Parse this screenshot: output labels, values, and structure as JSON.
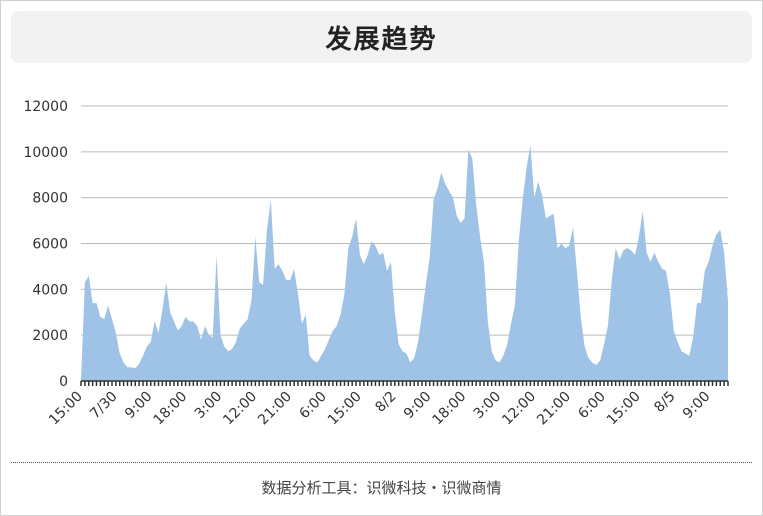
{
  "title": "发展趋势",
  "footer": "数据分析工具：识微科技・识微商情",
  "colors": {
    "area": "#9fc3e6",
    "axis": "#333333",
    "grid": "#bbbbbb"
  },
  "chart_data": {
    "type": "area",
    "ylim": [
      0,
      12000
    ],
    "yticks": [
      0,
      2000,
      4000,
      6000,
      8000,
      10000,
      12000
    ],
    "grid": true,
    "xtick_labels": [
      "15:00",
      "7/30",
      "9:00",
      "18:00",
      "3:00",
      "12:00",
      "21:00",
      "6:00",
      "15:00",
      "8/2",
      "9:00",
      "18:00",
      "3:00",
      "12:00",
      "21:00",
      "6:00",
      "15:00",
      "8/5",
      "9:00"
    ],
    "xtick_positions": [
      0,
      9,
      18,
      27,
      36,
      45,
      54,
      63,
      72,
      81,
      90,
      99,
      108,
      117,
      126,
      135,
      144,
      153,
      162
    ],
    "values": [
      0,
      4300,
      4600,
      3400,
      3400,
      2800,
      2700,
      3300,
      2700,
      2100,
      1200,
      800,
      600,
      600,
      550,
      750,
      1100,
      1500,
      1700,
      2600,
      2100,
      3100,
      4300,
      3000,
      2600,
      2200,
      2400,
      2800,
      2600,
      2600,
      2400,
      1800,
      2400,
      2000,
      1900,
      5500,
      2000,
      1500,
      1300,
      1400,
      1700,
      2300,
      2500,
      2700,
      3500,
      6300,
      4300,
      4200,
      6600,
      7900,
      4900,
      5100,
      4800,
      4400,
      4400,
      4900,
      3800,
      2500,
      2900,
      1100,
      900,
      800,
      1100,
      1400,
      1800,
      2200,
      2400,
      2900,
      3800,
      5800,
      6300,
      7100,
      5500,
      5100,
      5500,
      6100,
      5900,
      5500,
      5600,
      4800,
      5200,
      3000,
      1600,
      1300,
      1200,
      800,
      1000,
      1700,
      2900,
      4200,
      5400,
      7900,
      8400,
      9100,
      8600,
      8300,
      8000,
      7200,
      6900,
      7100,
      10100,
      9700,
      7700,
      6300,
      5200,
      2600,
      1300,
      900,
      800,
      1100,
      1600,
      2500,
      3300,
      6100,
      7900,
      9300,
      10300,
      8000,
      8700,
      8100,
      7100,
      7200,
      7300,
      5800,
      6000,
      5800,
      5900,
      6700,
      4800,
      2800,
      1500,
      1000,
      800,
      700,
      900,
      1600,
      2400,
      4400,
      5800,
      5300,
      5700,
      5800,
      5700,
      5500,
      6300,
      7400,
      5600,
      5200,
      5600,
      5200,
      4900,
      4800,
      3800,
      2200,
      1700,
      1300,
      1200,
      1100,
      1900,
      3400,
      3400,
      4800,
      5200,
      5900,
      6400,
      6600,
      5600,
      3500
    ]
  }
}
